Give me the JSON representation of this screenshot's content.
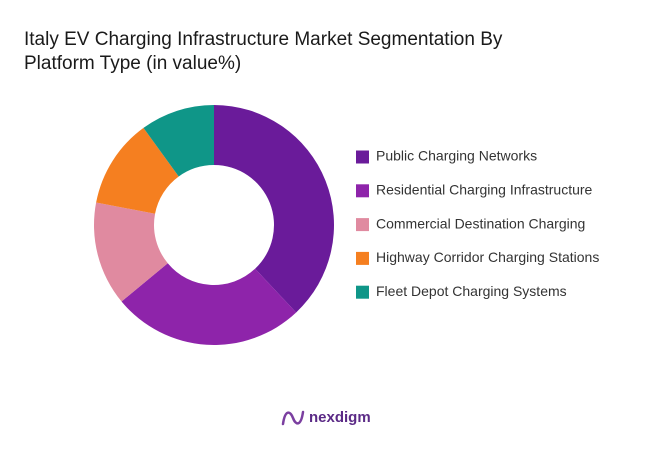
{
  "chart_data": {
    "type": "donut",
    "title": [
      " Italy EV Charging Infrastructure Market Segmentation By",
      "Platform Type (in value%)"
    ],
    "categories": [
      "Public Charging Networks",
      "Residential Charging Infrastructure",
      "Commercial Destination Charging",
      "Highway Corridor Charging Stations",
      "Fleet Depot Charging Systems"
    ],
    "values": [
      38,
      26,
      14,
      12,
      10
    ],
    "colors": [
      "#6a1b9a",
      "#8e24aa",
      "#e08aa0",
      "#f57f20",
      "#0f9688"
    ],
    "legend": "right",
    "brand": "nexdigm"
  }
}
